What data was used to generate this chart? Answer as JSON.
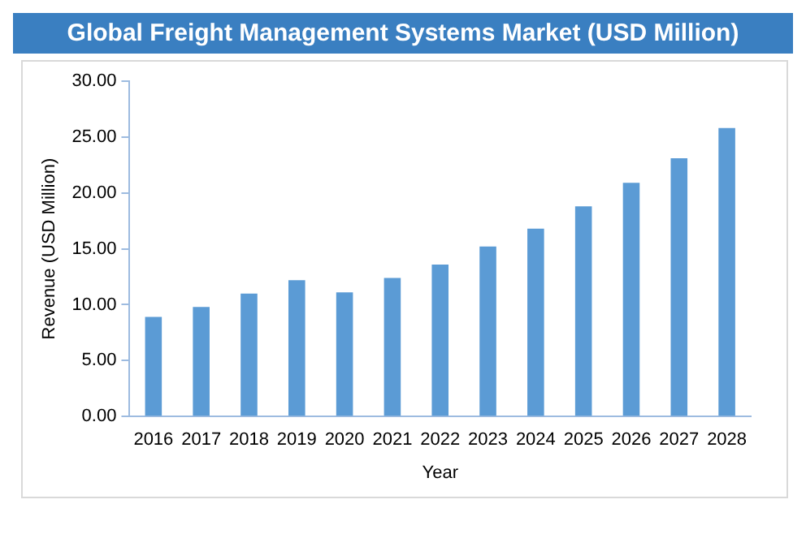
{
  "chart_data": {
    "type": "bar",
    "title": "Global Freight Management Systems Market (USD Million)",
    "xlabel": "Year",
    "ylabel": "Revenue (USD Million)",
    "categories": [
      "2016",
      "2017",
      "2018",
      "2019",
      "2020",
      "2021",
      "2022",
      "2023",
      "2024",
      "2025",
      "2026",
      "2027",
      "2028"
    ],
    "series": [
      {
        "color": "#5b9bd5",
        "values": [
          8.9,
          9.8,
          11.0,
          12.2,
          11.1,
          12.4,
          13.6,
          15.2,
          16.8,
          18.8,
          20.9,
          23.1,
          25.8
        ]
      }
    ],
    "ylim": [
      0,
      30
    ],
    "yticks": [
      {
        "value": 0,
        "label": "0.00"
      },
      {
        "value": 5,
        "label": "5.00"
      },
      {
        "value": 10,
        "label": "10.00"
      },
      {
        "value": 15,
        "label": "15.00"
      },
      {
        "value": 20,
        "label": "20.00"
      },
      {
        "value": 25,
        "label": "25.00"
      },
      {
        "value": 30,
        "label": "30.00"
      }
    ],
    "grid": false,
    "legend": false
  }
}
